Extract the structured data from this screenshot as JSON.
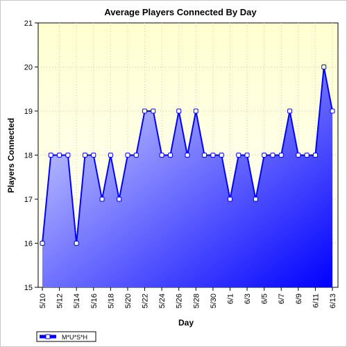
{
  "chart_data": {
    "type": "area",
    "title": "Average Players Connected By Day",
    "xlabel": "Day",
    "ylabel": "Players Connected",
    "ylim": [
      15,
      21
    ],
    "yticks": [
      "15",
      "16",
      "17",
      "18",
      "19",
      "20",
      "21"
    ],
    "x_ticks": [
      "5/10",
      "5/12",
      "5/14",
      "5/16",
      "5/18",
      "5/20",
      "5/22",
      "5/24",
      "5/26",
      "5/28",
      "5/30",
      "6/1",
      "6/3",
      "6/5",
      "6/7",
      "6/9",
      "6/11",
      "6/13"
    ],
    "categories": [
      "5/10",
      "5/11",
      "5/12",
      "5/13",
      "5/14",
      "5/15",
      "5/16",
      "5/17",
      "5/18",
      "5/19",
      "5/20",
      "5/21",
      "5/22",
      "5/23",
      "5/24",
      "5/25",
      "5/26",
      "5/27",
      "5/28",
      "5/29",
      "5/30",
      "5/31",
      "6/1",
      "6/2",
      "6/3",
      "6/4",
      "6/5",
      "6/6",
      "6/7",
      "6/8",
      "6/9",
      "6/10",
      "6/11",
      "6/12",
      "6/13"
    ],
    "series": [
      {
        "name": "M*U*S*H",
        "values": [
          16,
          18,
          18,
          18,
          16,
          18,
          18,
          17,
          18,
          17,
          18,
          18,
          19,
          19,
          18,
          18,
          19,
          18,
          19,
          18,
          18,
          18,
          17,
          18,
          18,
          17,
          18,
          18,
          18,
          19,
          18,
          18,
          18,
          20,
          19
        ]
      }
    ],
    "grid": true,
    "legend": "bottom-left",
    "colors": {
      "line": "#0000ff",
      "marker_fill": "#ffffff",
      "plot_bg_top": "#ffffd0",
      "plot_bg_bottom": "#ffffff",
      "area_light": "#e0e4ff",
      "area_dark": "#0000ff",
      "grid": "#cccc99"
    }
  }
}
